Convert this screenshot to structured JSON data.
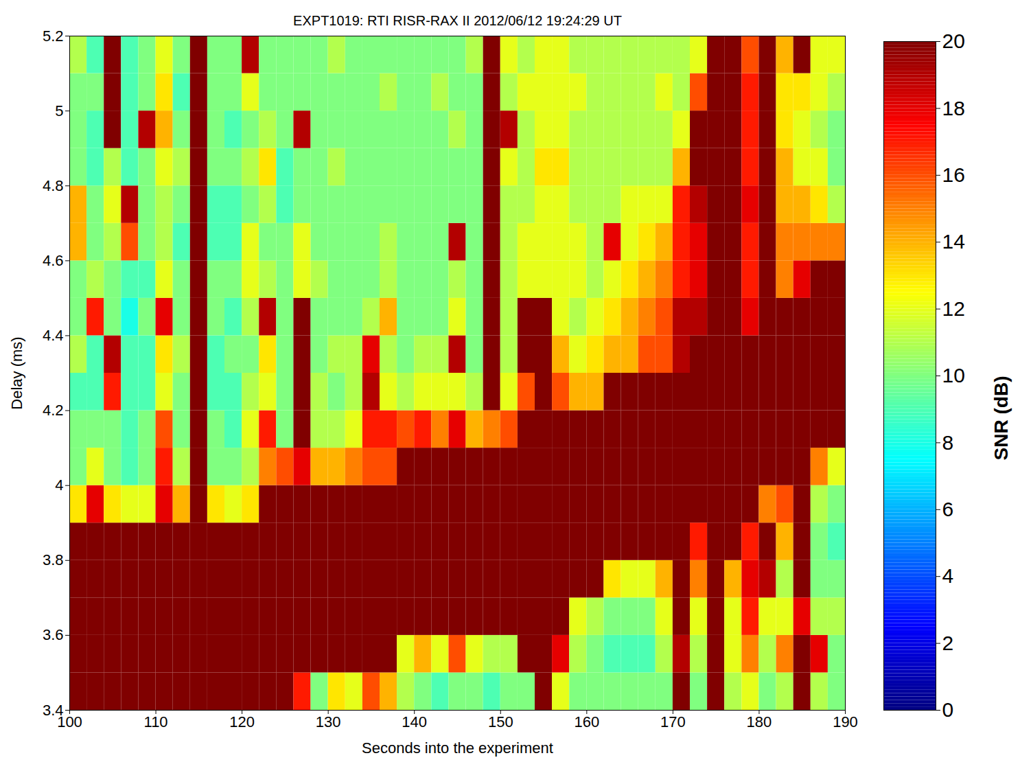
{
  "chart_data": {
    "type": "heatmap",
    "title": "EXPT1019: RTI RISR-RAX II 2012/06/12 19:24:29 UT",
    "x_label": "Seconds into the experiment",
    "y_label": "Delay (ms)",
    "xlim": [
      100,
      190
    ],
    "ylim": [
      3.4,
      5.2
    ],
    "xticks": [
      100,
      110,
      120,
      130,
      140,
      150,
      160,
      170,
      180,
      190
    ],
    "yticks": [
      3.4,
      3.6,
      3.8,
      4,
      4.2,
      4.4,
      4.6,
      4.8,
      5,
      5.2
    ],
    "x": [
      101,
      103,
      105,
      107,
      109,
      111,
      113,
      115,
      117,
      119,
      121,
      123,
      125,
      127,
      129,
      131,
      133,
      135,
      137,
      139,
      141,
      143,
      145,
      147,
      149,
      151,
      153,
      155,
      157,
      159,
      161,
      163,
      165,
      167,
      169,
      171,
      173,
      175,
      177,
      179,
      181,
      183,
      185,
      187,
      189
    ],
    "y": [
      3.45,
      3.55,
      3.65,
      3.75,
      3.85,
      3.95,
      4.05,
      4.15,
      4.25,
      4.35,
      4.45,
      4.55,
      4.65,
      4.75,
      4.85,
      4.95,
      5.05,
      5.15
    ],
    "values": [
      [
        30,
        30,
        30,
        30,
        30,
        13,
        10,
        10,
        9,
        11,
        10,
        10,
        14,
        14,
        10,
        10,
        10,
        11
      ],
      [
        30,
        30,
        30,
        30,
        30,
        18,
        12,
        10,
        9,
        9,
        17,
        11,
        10,
        10,
        9,
        9,
        10,
        9
      ],
      [
        30,
        30,
        30,
        30,
        30,
        13,
        10,
        10,
        17,
        19,
        10,
        10,
        11,
        12,
        11,
        20,
        20,
        20
      ],
      [
        30,
        30,
        30,
        30,
        30,
        12,
        9,
        9,
        9,
        9,
        8,
        9,
        16,
        19,
        9,
        9,
        9,
        9
      ],
      [
        30,
        30,
        30,
        30,
        30,
        12,
        10,
        10,
        9,
        9,
        10,
        9,
        10,
        10,
        10,
        19,
        10,
        10
      ],
      [
        30,
        30,
        30,
        30,
        30,
        18,
        17,
        16,
        12,
        13,
        18,
        12,
        11,
        11,
        12,
        14,
        13,
        12
      ],
      [
        30,
        30,
        30,
        30,
        30,
        14,
        11,
        10,
        10,
        11,
        10,
        10,
        9,
        10,
        11,
        10,
        9,
        10
      ],
      [
        30,
        30,
        30,
        30,
        30,
        22,
        22,
        22,
        22,
        22,
        22,
        22,
        22,
        22,
        22,
        22,
        22,
        22
      ],
      [
        30,
        30,
        30,
        30,
        30,
        13,
        10,
        10,
        9,
        9,
        10,
        10,
        9,
        9,
        10,
        10,
        10,
        10
      ],
      [
        30,
        30,
        30,
        30,
        30,
        12,
        10,
        9,
        9,
        10,
        9,
        10,
        9,
        9,
        10,
        9,
        10,
        10
      ],
      [
        30,
        30,
        30,
        30,
        30,
        13,
        11,
        12,
        11,
        10,
        11,
        12,
        12,
        10,
        11,
        10,
        12,
        19
      ],
      [
        30,
        30,
        30,
        30,
        30,
        30,
        15,
        17,
        12,
        13,
        19,
        11,
        10,
        11,
        13,
        11,
        10,
        10
      ],
      [
        30,
        30,
        30,
        30,
        30,
        30,
        16,
        10,
        10,
        10,
        10,
        10,
        10,
        9,
        9,
        10,
        10,
        10
      ],
      [
        17,
        30,
        30,
        30,
        30,
        30,
        18,
        20,
        20,
        20,
        20,
        12,
        12,
        10,
        10,
        19,
        10,
        10
      ],
      [
        10,
        30,
        30,
        30,
        30,
        30,
        14,
        11,
        11,
        10,
        10,
        11,
        10,
        10,
        10,
        10,
        10,
        10
      ],
      [
        13,
        30,
        30,
        30,
        30,
        30,
        14,
        11,
        10,
        11,
        10,
        10,
        10,
        10,
        11,
        10,
        10,
        11
      ],
      [
        12,
        30,
        30,
        30,
        30,
        30,
        15,
        12,
        11,
        11,
        10,
        10,
        10,
        10,
        10,
        10,
        10,
        10
      ],
      [
        16,
        30,
        30,
        30,
        30,
        30,
        16,
        17,
        19,
        18,
        11,
        10,
        10,
        10,
        10,
        10,
        10,
        10
      ],
      [
        14,
        30,
        30,
        30,
        30,
        30,
        16,
        17,
        12,
        11,
        14,
        11,
        11,
        10,
        10,
        10,
        11,
        10
      ],
      [
        11,
        12,
        30,
        30,
        30,
        30,
        30,
        16,
        11,
        10,
        10,
        10,
        10,
        10,
        10,
        10,
        10,
        10
      ],
      [
        10,
        14,
        30,
        30,
        30,
        30,
        30,
        17,
        12,
        11,
        10,
        10,
        10,
        10,
        10,
        10,
        10,
        10
      ],
      [
        9,
        12,
        30,
        30,
        30,
        30,
        30,
        15,
        12,
        11,
        10,
        10,
        10,
        10,
        10,
        10,
        11,
        10
      ],
      [
        10,
        16,
        30,
        30,
        30,
        30,
        30,
        18,
        12,
        19,
        12,
        11,
        19,
        10,
        10,
        11,
        10,
        10
      ],
      [
        10,
        12,
        30,
        30,
        30,
        30,
        30,
        14,
        11,
        10,
        10,
        10,
        10,
        10,
        10,
        10,
        10,
        11
      ],
      [
        9,
        11,
        30,
        30,
        30,
        30,
        30,
        15,
        20,
        20,
        20,
        20,
        20,
        20,
        20,
        20,
        20,
        20
      ],
      [
        10,
        11,
        30,
        30,
        30,
        30,
        30,
        16,
        12,
        11,
        11,
        11,
        11,
        11,
        12,
        19,
        11,
        12
      ],
      [
        10,
        20,
        20,
        30,
        30,
        30,
        30,
        30,
        16,
        20,
        20,
        12,
        12,
        11,
        11,
        11,
        12,
        11
      ],
      [
        20,
        20,
        20,
        30,
        30,
        30,
        30,
        30,
        20,
        20,
        20,
        12,
        12,
        12,
        13,
        12,
        12,
        12
      ],
      [
        12,
        18,
        20,
        30,
        30,
        30,
        30,
        30,
        16,
        14,
        12,
        12,
        12,
        12,
        13,
        12,
        12,
        12
      ],
      [
        10,
        11,
        12,
        30,
        30,
        30,
        30,
        30,
        14,
        12,
        11,
        12,
        12,
        11,
        11,
        11,
        12,
        11
      ],
      [
        10,
        10,
        11,
        30,
        30,
        30,
        30,
        30,
        14,
        13,
        12,
        11,
        11,
        11,
        11,
        11,
        11,
        11
      ],
      [
        10,
        9,
        10,
        13,
        30,
        30,
        30,
        30,
        30,
        14,
        13,
        12,
        18,
        11,
        11,
        11,
        11,
        11
      ],
      [
        10,
        9,
        10,
        12,
        30,
        30,
        30,
        30,
        30,
        14,
        14,
        13,
        12,
        12,
        11,
        11,
        11,
        11
      ],
      [
        10,
        9,
        10,
        12,
        30,
        30,
        30,
        30,
        30,
        16,
        15,
        14,
        13,
        12,
        11,
        11,
        11,
        11
      ],
      [
        10,
        11,
        12,
        14,
        30,
        30,
        30,
        30,
        30,
        16,
        16,
        15,
        14,
        12,
        11,
        11,
        12,
        11
      ],
      [
        20,
        19,
        20,
        20,
        30,
        30,
        30,
        30,
        30,
        19,
        19,
        17,
        17,
        17,
        14,
        12,
        11,
        11
      ],
      [
        10,
        11,
        12,
        15,
        17,
        30,
        30,
        30,
        30,
        30,
        19,
        18,
        18,
        19,
        20,
        20,
        16,
        12
      ],
      [
        20,
        20,
        20,
        20,
        20,
        30,
        30,
        30,
        30,
        30,
        20,
        20,
        20,
        20,
        20,
        20,
        20,
        20
      ],
      [
        11,
        12,
        12,
        14,
        20,
        30,
        30,
        30,
        30,
        30,
        20,
        20,
        20,
        20,
        20,
        20,
        20,
        20
      ],
      [
        12,
        15,
        17,
        18,
        17,
        30,
        30,
        30,
        30,
        30,
        18,
        17,
        17,
        18,
        17,
        17,
        17,
        16
      ],
      [
        10,
        11,
        12,
        19,
        20,
        15,
        30,
        30,
        30,
        30,
        30,
        20,
        20,
        20,
        20,
        20,
        20,
        20
      ],
      [
        11,
        15,
        12,
        11,
        14,
        16,
        30,
        30,
        30,
        30,
        30,
        15,
        15,
        14,
        14,
        13,
        13,
        14
      ],
      [
        20,
        20,
        18,
        20,
        20,
        20,
        30,
        30,
        30,
        30,
        30,
        18,
        15,
        14,
        12,
        12,
        13,
        20
      ],
      [
        11,
        18,
        11,
        10,
        10,
        11,
        15,
        30,
        30,
        30,
        30,
        30,
        15,
        13,
        12,
        11,
        12,
        12
      ],
      [
        10,
        10,
        11,
        10,
        9,
        10,
        12,
        30,
        30,
        30,
        30,
        30,
        15,
        11,
        10,
        10,
        11,
        12
      ]
    ],
    "colorbar": {
      "label": "SNR (dB)",
      "range": [
        0,
        20
      ],
      "ticks": [
        0,
        2,
        4,
        6,
        8,
        10,
        12,
        14,
        16,
        18,
        20
      ]
    }
  }
}
